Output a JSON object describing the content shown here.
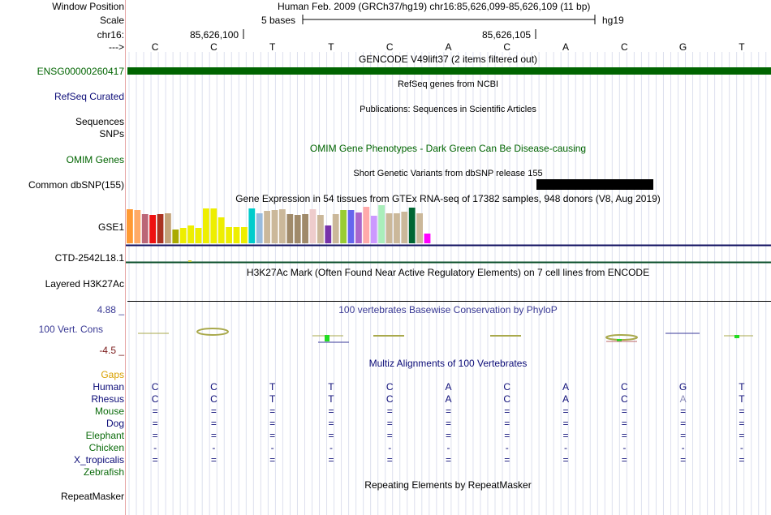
{
  "header": {
    "window_position_label": "Window Position",
    "window_position_value": "Human Feb. 2009 (GRCh37/hg19)   chr16:85,626,099-85,626,109 (11 bp)",
    "scale_label": "Scale",
    "scale_value": "5 bases",
    "scale_assembly": "hg19",
    "chrom_label": "chr16:",
    "coord_1": "85,626,100",
    "coord_2": "85,626,105",
    "strand_label": "--->"
  },
  "sequence": [
    "C",
    "C",
    "T",
    "T",
    "C",
    "A",
    "C",
    "A",
    "C",
    "G",
    "T"
  ],
  "tracks": {
    "gencode_title": "GENCODE V49lift37 (2 items filtered out)",
    "gencode_item": "ENSG00000260417",
    "refseq_title": "RefSeq genes from NCBI",
    "refseq_label": "RefSeq Curated",
    "pubs_title": "Publications: Sequences in Scientific Articles",
    "pubs_label_1": "Sequences",
    "pubs_label_2": "SNPs",
    "omim_title": "OMIM Gene Phenotypes - Dark Green Can Be Disease-causing",
    "omim_label": "OMIM Genes",
    "dbsnp_title": "Short Genetic Variants from dbSNP release 155",
    "dbsnp_label": "Common dbSNP(155)",
    "gtex_title": "Gene Expression in 54 tissues from GTEx RNA-seq of 17382 samples, 948 donors (V8, Aug 2019)",
    "gtex_label_1": "GSE1",
    "gtex_label_2": "CTD-2542L18.1",
    "h3k27_title": "H3K27Ac Mark (Often Found Near Active Regulatory Elements) on 7 cell lines from ENCODE",
    "h3k27_label": "Layered H3K27Ac",
    "cons_title": "100 vertebrates Basewise Conservation by PhyloP",
    "cons_label": "100 Vert. Cons",
    "cons_max": "4.88 _",
    "cons_min": "-4.5 _",
    "multiz_title": "Multiz Alignments of 100 Vertebrates",
    "rmsk_title": "Repeating Elements by RepeatMasker",
    "rmsk_label": "RepeatMasker"
  },
  "alignment": [
    {
      "species": "Gaps",
      "color": "#d9a000",
      "row": [
        "",
        "",
        "",
        "",
        "",
        "",
        "",
        "",
        "",
        "",
        ""
      ]
    },
    {
      "species": "Human",
      "color": "#0c0c78",
      "row": [
        "C",
        "C",
        "T",
        "T",
        "C",
        "A",
        "C",
        "A",
        "C",
        "G",
        "T"
      ]
    },
    {
      "species": "Rhesus",
      "color": "#0c0c78",
      "row": [
        "C",
        "C",
        "T",
        "T",
        "C",
        "A",
        "C",
        "A",
        "C",
        "A",
        "T"
      ]
    },
    {
      "species": "Mouse",
      "color": "#0b6b0b",
      "row": [
        "=",
        "=",
        "=",
        "=",
        "=",
        "=",
        "=",
        "=",
        "=",
        "=",
        "="
      ]
    },
    {
      "species": "Dog",
      "color": "#0c0c78",
      "row": [
        "=",
        "=",
        "=",
        "=",
        "=",
        "=",
        "=",
        "=",
        "=",
        "=",
        "="
      ]
    },
    {
      "species": "Elephant",
      "color": "#0b6b0b",
      "row": [
        "=",
        "=",
        "=",
        "=",
        "=",
        "=",
        "=",
        "=",
        "=",
        "=",
        "="
      ]
    },
    {
      "species": "Chicken",
      "color": "#0b6b0b",
      "row": [
        "-",
        "-",
        "-",
        "-",
        "-",
        "-",
        "-",
        "-",
        "-",
        "-",
        "-"
      ]
    },
    {
      "species": "X_tropicalis",
      "color": "#0c0c78",
      "row": [
        "=",
        "=",
        "=",
        "=",
        "=",
        "=",
        "=",
        "=",
        "=",
        "=",
        "="
      ]
    },
    {
      "species": "Zebrafish",
      "color": "#0b6b0b",
      "row": [
        "",
        "",
        "",
        "",
        "",
        "",
        "",
        "",
        "",
        "",
        ""
      ]
    }
  ],
  "gtex_colors": [
    "#ff9933",
    "#ffaa66",
    "#bb6677",
    "#ee1111",
    "#aa3322",
    "#c4a37a",
    "#aaaa00",
    "#eeee00",
    "#eeee00",
    "#eeee00",
    "#eeee00",
    "#eeee00",
    "#eeee00",
    "#eeee00",
    "#eeee00",
    "#eeee00",
    "#00cccc",
    "#99bbdd",
    "#cbb89a",
    "#cbb89a",
    "#cbb89a",
    "#a08a6a",
    "#a08a6a",
    "#a08a6a",
    "#eecccc",
    "#cbb89a",
    "#7733aa",
    "#cbb89a",
    "#99cc33",
    "#6666ee",
    "#aa66cc",
    "#ffaaaa",
    "#cc99ff",
    "#aaeebb",
    "#cbb89a",
    "#cbb89a",
    "#cbb89a",
    "#006633",
    "#cbb89a",
    "#ff00ff"
  ],
  "gtex_values": [
    42,
    41,
    36,
    35,
    36,
    37,
    17,
    19,
    22,
    19,
    43,
    43,
    32,
    20,
    20,
    20,
    43,
    37,
    40,
    41,
    42,
    36,
    35,
    36,
    42,
    35,
    22,
    36,
    41,
    41,
    38,
    45,
    34,
    47,
    37,
    37,
    39,
    44,
    37,
    12
  ]
}
